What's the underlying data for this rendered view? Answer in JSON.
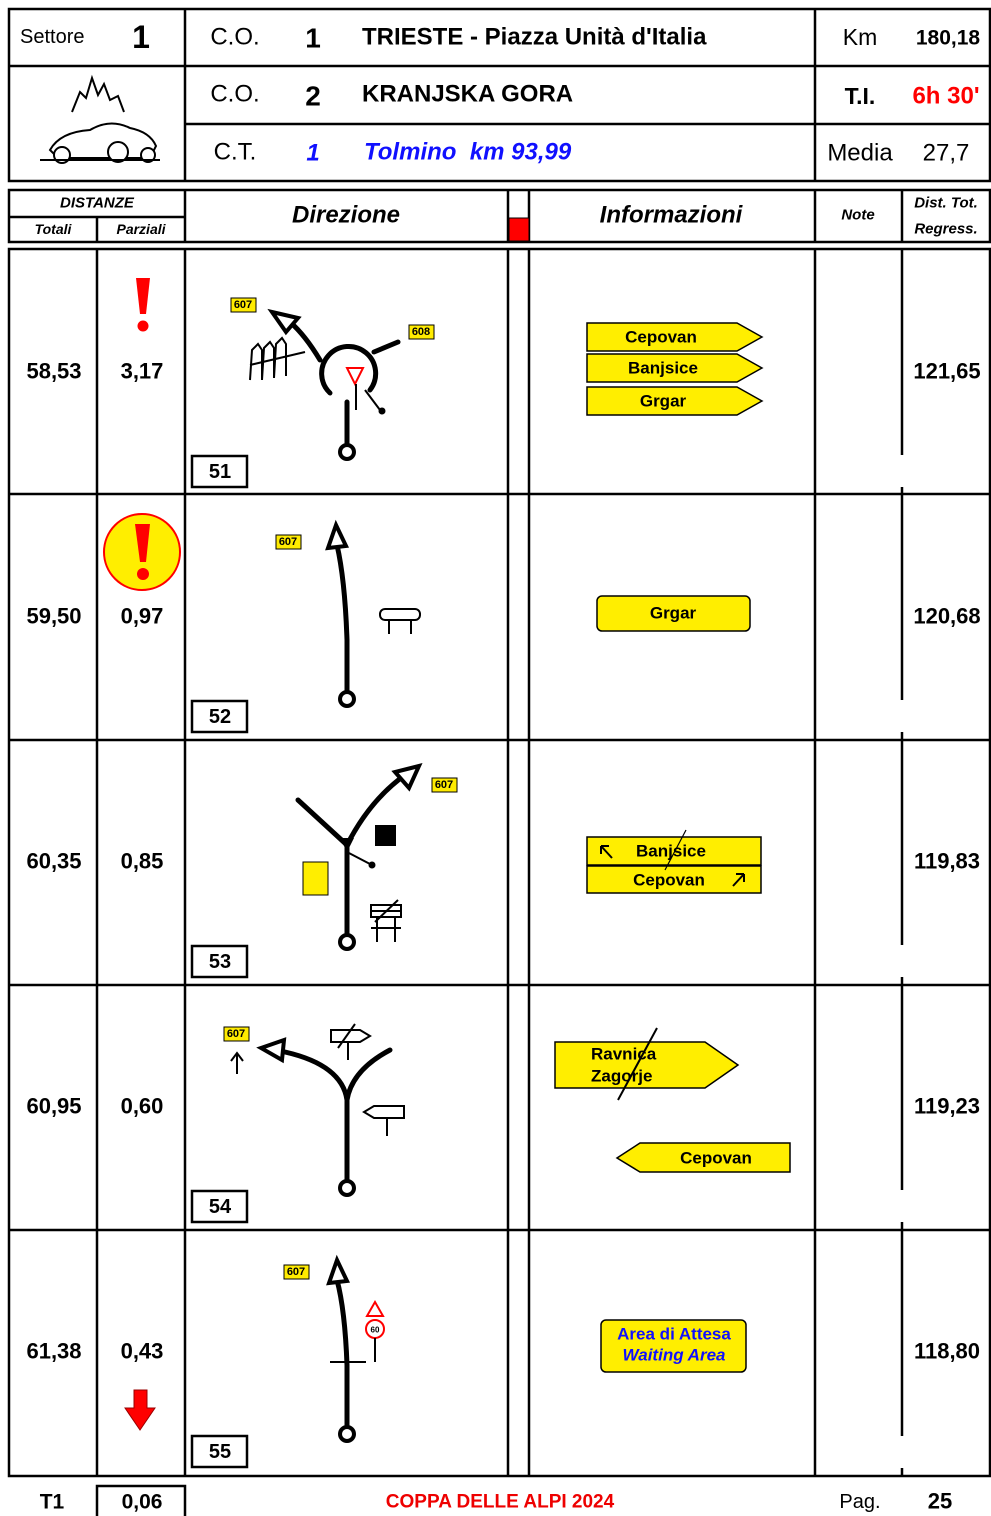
{
  "header": {
    "sector_label": "Settore",
    "sector_number": "1",
    "lines": [
      {
        "label": "C.O.",
        "number": "1",
        "place": "TRIESTE - Piazza Unità d'Italia",
        "key": "Km",
        "value": "180,18"
      },
      {
        "label": "C.O.",
        "number": "2",
        "place": "KRANJSKA GORA",
        "key": "T.I.",
        "value": "6h 30'"
      },
      {
        "label": "C.T.",
        "number": "1",
        "place": "Tolmino  km 93,99",
        "key": "Media",
        "value": "27,7"
      }
    ]
  },
  "columns": {
    "group": "DISTANZE",
    "totali": "Totali",
    "parziali": "Parziali",
    "direzione": "Direzione",
    "informazioni": "Informazioni",
    "note": "Note",
    "dist_tot": "Dist. Tot.",
    "regress": "Regress."
  },
  "rows": [
    {
      "totale": "58,53",
      "parziale": "3,17",
      "number": "51",
      "road_tags": [
        "607",
        "608"
      ],
      "signs": [
        "Cepovan",
        "Banjsice",
        "Grgar"
      ],
      "remaining": "121,65"
    },
    {
      "totale": "59,50",
      "parziale": "0,97",
      "number": "52",
      "road_tags": [
        "607"
      ],
      "signs": [
        "Grgar"
      ],
      "remaining": "120,68"
    },
    {
      "totale": "60,35",
      "parziale": "0,85",
      "number": "53",
      "road_tags": [
        "607"
      ],
      "signs": [
        "Banjsice",
        "Cepovan"
      ],
      "remaining": "119,83"
    },
    {
      "totale": "60,95",
      "parziale": "0,60",
      "number": "54",
      "road_tags": [
        "607"
      ],
      "signs": [
        "Ravnica",
        "Zagorje",
        "Cepovan"
      ],
      "remaining": "119,23"
    },
    {
      "totale": "61,38",
      "parziale": "0,43",
      "number": "55",
      "road_tags": [
        "607"
      ],
      "speed_limit": "60",
      "signs": [
        "Area di Attesa",
        "Waiting Area"
      ],
      "remaining": "118,80"
    }
  ],
  "footer": {
    "label": "T1",
    "value": "0,06",
    "event": "COPPA DELLE ALPI 2024",
    "page_label": "Pag.",
    "page": "25"
  }
}
